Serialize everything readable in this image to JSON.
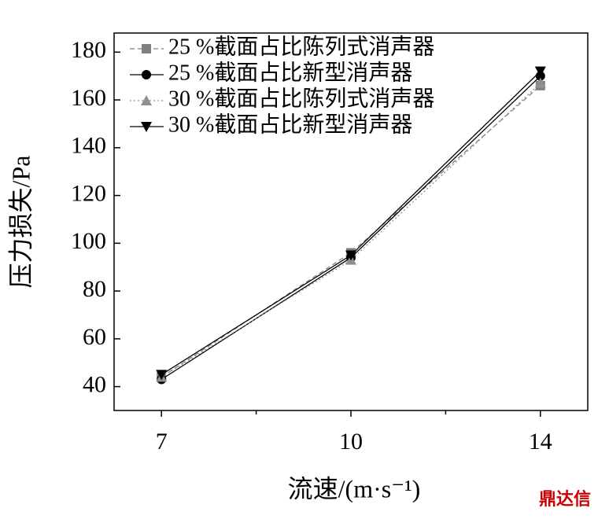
{
  "chart_data": {
    "type": "line",
    "x_label": "流速/(m·s⁻¹)",
    "y_label": "压力损失/Pa",
    "categories": [
      "7",
      "10",
      "14"
    ],
    "series": [
      {
        "name": "25 %截面占比陈列式消声器",
        "color": "#808080",
        "marker": "square",
        "dash": "dashed",
        "values": [
          44,
          96,
          166
        ]
      },
      {
        "name": "25 %截面占比新型消声器",
        "color": "#000000",
        "marker": "circle",
        "dash": "solid",
        "values": [
          43,
          94,
          170
        ]
      },
      {
        "name": "30 %截面占比陈列式消声器",
        "color": "#909090",
        "marker": "triangle",
        "dash": "dotted",
        "values": [
          44,
          93,
          167
        ]
      },
      {
        "name": "30 %截面占比新型消声器",
        "color": "#000000",
        "marker": "triangle-down",
        "dash": "solid",
        "values": [
          45,
          95,
          172
        ]
      }
    ],
    "ylim": [
      30,
      188
    ],
    "yticks": [
      40,
      60,
      80,
      100,
      120,
      140,
      160,
      180
    ],
    "legend": "top-left",
    "watermark": "鼎达信"
  }
}
